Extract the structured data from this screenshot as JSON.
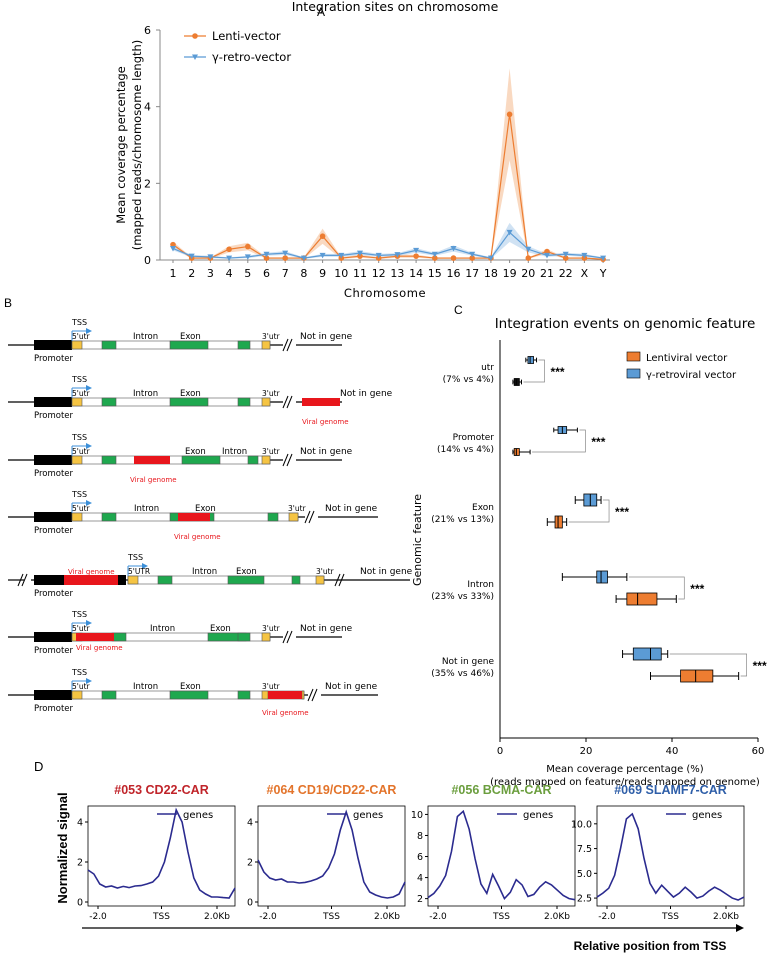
{
  "colors": {
    "lenti": "#ed7d31",
    "retro": "#5b9bd5",
    "lentiBand": "#f7c9a6",
    "retroBand": "#bcd6ee",
    "green": "#1fa84f",
    "red": "#e8161c",
    "yellow": "#f5c443",
    "black": "#000000",
    "navy": "#2b2b8f",
    "arrow": "#3c8fd8"
  },
  "panelA": {
    "letter": "A",
    "title": "Integration sites on chromosome",
    "ylabel": "Mean coverage percentage",
    "ylabel2": "(mapped reads/chromosome length)",
    "xlabel": "Chromosome"
  },
  "panelB": {
    "letter": "B",
    "tss": "TSS",
    "utr5": "5'utr",
    "UTR5": "5'UTR",
    "intron": "Intron",
    "exon": "Exon",
    "utr3": "3'utr",
    "notInGene": "Not in gene",
    "promoter": "Promoter",
    "viral": "Viral genome"
  },
  "panelC": {
    "letter": "C"
  },
  "panelD": {
    "letter": "D",
    "ylabel": "Normalized signal",
    "xlabel": "Relative position from TSS"
  },
  "chart_data": [
    {
      "type": "line",
      "title": "Integration sites on chromosome",
      "xlabel": "Chromosome",
      "ylabel": "Mean coverage percentage (mapped reads/chromosome length)",
      "x": [
        "1",
        "2",
        "3",
        "4",
        "5",
        "6",
        "7",
        "8",
        "9",
        "10",
        "11",
        "12",
        "13",
        "14",
        "15",
        "16",
        "17",
        "18",
        "19",
        "20",
        "21",
        "22",
        "X",
        "Y"
      ],
      "ylim": [
        0,
        6
      ],
      "yticks": [
        0,
        2,
        4,
        6
      ],
      "legend_position": "top-left",
      "series": [
        {
          "name": "Lenti-vector",
          "values": [
            0.4,
            0.05,
            0.05,
            0.28,
            0.35,
            0.05,
            0.05,
            0.05,
            0.62,
            0.05,
            0.1,
            0.05,
            0.1,
            0.1,
            0.05,
            0.05,
            0.05,
            0.05,
            3.8,
            0.05,
            0.22,
            0.05,
            0.05,
            0.02
          ],
          "band": [
            0.08,
            0.02,
            0.02,
            0.08,
            0.1,
            0.02,
            0.02,
            0.02,
            0.2,
            0.02,
            0.04,
            0.02,
            0.04,
            0.04,
            0.02,
            0.02,
            0.02,
            0.02,
            1.2,
            0.02,
            0.06,
            0.02,
            0.02,
            0.01
          ]
        },
        {
          "name": "γ-retro-vector",
          "values": [
            0.3,
            0.1,
            0.08,
            0.05,
            0.08,
            0.15,
            0.18,
            0.05,
            0.12,
            0.12,
            0.18,
            0.12,
            0.14,
            0.25,
            0.15,
            0.3,
            0.15,
            0.05,
            0.72,
            0.28,
            0.12,
            0.15,
            0.12,
            0.05
          ],
          "band": [
            0.05,
            0.03,
            0.03,
            0.02,
            0.03,
            0.04,
            0.05,
            0.02,
            0.04,
            0.04,
            0.05,
            0.04,
            0.04,
            0.06,
            0.04,
            0.08,
            0.04,
            0.02,
            0.25,
            0.08,
            0.04,
            0.04,
            0.04,
            0.02
          ]
        }
      ]
    },
    {
      "type": "box",
      "title": "Integration events on genomic feature",
      "xlabel": "Mean coverage percentage (%)",
      "xlabel2": "(reads mapped on feature/reads mapped on genome)",
      "ylabel": "Genomic feature",
      "xlim": [
        0,
        60
      ],
      "xticks": [
        0,
        20,
        40,
        60
      ],
      "legend_position": "top-right",
      "series_names": [
        "Lentiviral vector",
        "γ-retroviral vector"
      ],
      "categories": [
        {
          "name": "utr",
          "pct": "(7% vs 4%)",
          "sig": "***",
          "retro": {
            "min": 6,
            "q1": 6.5,
            "median": 7,
            "q3": 7.8,
            "max": 8.5
          },
          "lenti": {
            "min": 3,
            "q1": 3.3,
            "median": 3.8,
            "q3": 4.5,
            "max": 5
          }
        },
        {
          "name": "Promoter",
          "pct": "(14% vs 4%)",
          "sig": "***",
          "retro": {
            "min": 12.5,
            "q1": 13.5,
            "median": 14.5,
            "q3": 15.5,
            "max": 18
          },
          "lenti": {
            "min": 3,
            "q1": 3.3,
            "median": 3.8,
            "q3": 4.5,
            "max": 7
          }
        },
        {
          "name": "Exon",
          "pct": "(21% vs 13%)",
          "sig": "***",
          "retro": {
            "min": 17.5,
            "q1": 19.5,
            "median": 21,
            "q3": 22.5,
            "max": 23.5
          },
          "lenti": {
            "min": 11,
            "q1": 12.8,
            "median": 13.5,
            "q3": 14.5,
            "max": 15.5
          }
        },
        {
          "name": "Intron",
          "pct": "(23% vs 33%)",
          "sig": "***",
          "retro": {
            "min": 14.5,
            "q1": 22.5,
            "median": 23.5,
            "q3": 25,
            "max": 29.5
          },
          "lenti": {
            "min": 27,
            "q1": 29.5,
            "median": 32,
            "q3": 36.5,
            "max": 41
          }
        },
        {
          "name": "Not in gene",
          "pct": "(35% vs 46%)",
          "sig": "***",
          "retro": {
            "min": 28.5,
            "q1": 31,
            "median": 35,
            "q3": 37.5,
            "max": 39
          },
          "lenti": {
            "min": 35,
            "q1": 42,
            "median": 45.5,
            "q3": 49.5,
            "max": 55.5
          }
        }
      ]
    },
    {
      "type": "line",
      "title": "#053 CD22-CAR",
      "titleColor": "#c0242a",
      "legend": "genes",
      "ylim": [
        -0.2,
        4.8
      ],
      "yticks": [
        0,
        2,
        4
      ],
      "xticks": [
        "-2.0",
        "TSS",
        "2.0Kb"
      ],
      "series": [
        {
          "name": "genes",
          "values": [
            1.6,
            1.4,
            0.9,
            0.75,
            0.8,
            0.7,
            0.78,
            0.72,
            0.8,
            0.82,
            0.9,
            1.0,
            1.3,
            2.0,
            3.2,
            4.6,
            4.0,
            2.5,
            1.2,
            0.6,
            0.4,
            0.25,
            0.25,
            0.22,
            0.2,
            0.7
          ]
        }
      ]
    },
    {
      "type": "line",
      "title": "#064 CD19/CD22-CAR",
      "titleColor": "#e3742b",
      "legend": "genes",
      "ylim": [
        -0.2,
        4.8
      ],
      "yticks": [
        0,
        2,
        4
      ],
      "xticks": [
        "-2.0",
        "TSS",
        "2.0Kb"
      ],
      "series": [
        {
          "name": "genes",
          "values": [
            2.1,
            1.5,
            1.2,
            1.1,
            1.15,
            1.0,
            1.0,
            0.95,
            0.98,
            1.05,
            1.15,
            1.3,
            1.7,
            2.4,
            3.6,
            4.5,
            3.6,
            2.2,
            1.0,
            0.5,
            0.35,
            0.25,
            0.2,
            0.25,
            0.4,
            1.0
          ]
        }
      ]
    },
    {
      "type": "line",
      "title": "#056 BCMA-CAR",
      "titleColor": "#6b9e3e",
      "legend": "genes",
      "ylim": [
        1.3,
        10.8
      ],
      "yticks": [
        2,
        4,
        6,
        8,
        10
      ],
      "xticks": [
        "-2.0",
        "TSS",
        "2.0Kb"
      ],
      "series": [
        {
          "name": "genes",
          "values": [
            2.1,
            2.5,
            3.2,
            4.2,
            6.5,
            9.8,
            10.3,
            8.6,
            5.8,
            3.4,
            2.5,
            4.3,
            3.2,
            2.0,
            2.6,
            3.8,
            3.3,
            2.2,
            2.4,
            3.1,
            3.6,
            3.3,
            2.8,
            2.3,
            2.0,
            1.9
          ]
        }
      ]
    },
    {
      "type": "line",
      "title": "#069 SLAMF7-CAR",
      "titleColor": "#2e5ea8",
      "legend": "genes",
      "ylim": [
        1.7,
        11.8
      ],
      "yticks": [
        "2.5",
        "5.0",
        "7.5",
        "10.0"
      ],
      "xticks": [
        "-2.0",
        "TSS",
        "2.0Kb"
      ],
      "series": [
        {
          "name": "genes",
          "values": [
            2.6,
            3.0,
            3.5,
            4.8,
            7.5,
            10.5,
            11.0,
            9.5,
            6.5,
            4.0,
            3.0,
            3.8,
            3.2,
            2.6,
            3.0,
            3.6,
            3.1,
            2.5,
            2.7,
            3.2,
            3.6,
            3.3,
            2.9,
            2.5,
            2.3,
            2.6
          ]
        }
      ]
    }
  ]
}
